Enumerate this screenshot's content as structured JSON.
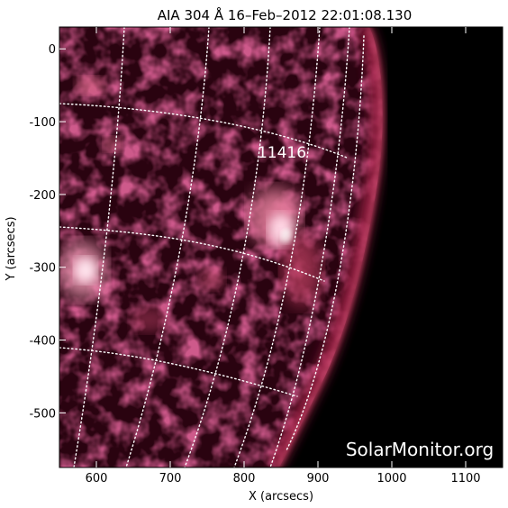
{
  "title": "AIA 304 Å 16–Feb–2012 22:01:08.130",
  "x_axis": {
    "label": "X (arcsecs)",
    "ticks": [
      "600",
      "700",
      "800",
      "900",
      "1000",
      "1100"
    ],
    "range": [
      550,
      1150
    ]
  },
  "y_axis": {
    "label": "Y (arcsecs)",
    "ticks": [
      "0",
      "-100",
      "-200",
      "-300",
      "-400",
      "-500"
    ],
    "range": [
      -575,
      30
    ]
  },
  "active_region": {
    "label": "11416",
    "x": 870,
    "y": -150
  },
  "credit": "SolarMonitor.org",
  "colors": {
    "plasma": "#b0304e",
    "plasma_bright": "#ffe6ef",
    "plasma_dark": "#200008",
    "space": "#000000",
    "grid": "#ffffff"
  }
}
